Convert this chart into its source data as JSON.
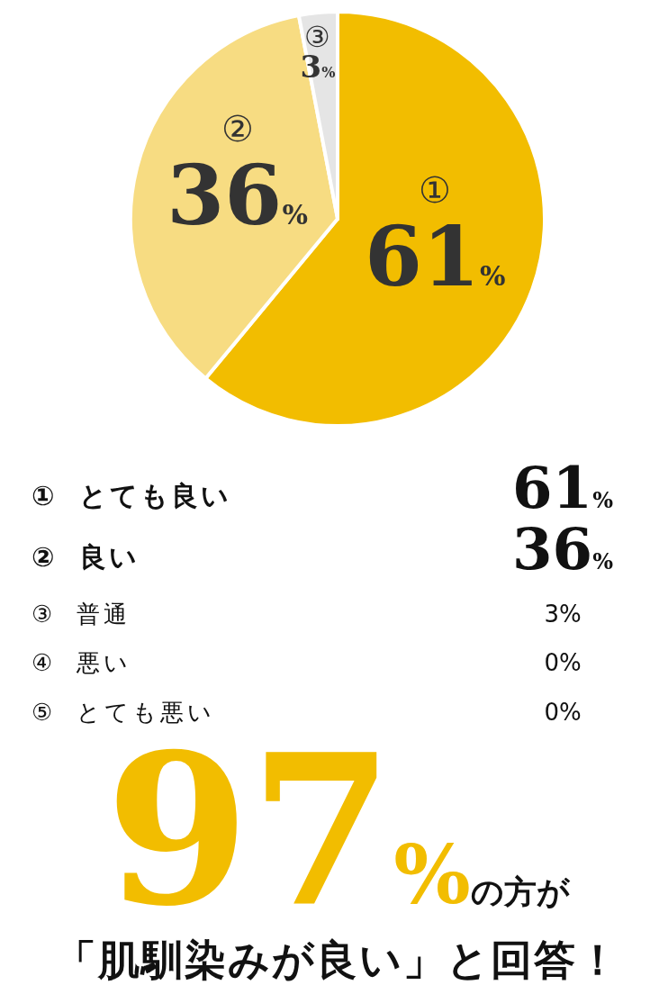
{
  "chart_data": [
    {
      "type": "pie",
      "categories": [
        "①",
        "②",
        "③",
        null,
        null
      ],
      "values": [
        61,
        36,
        3,
        0,
        0
      ],
      "colors": [
        "#f2bd00",
        "#f7dc82",
        "#e5e5e5",
        "#cccccc",
        "#bbbbbb"
      ],
      "value_labels": [
        "61%",
        "36%",
        "3%",
        null,
        null
      ]
    },
    {
      "type": "other",
      "categories": [
        "① とても良い",
        "② 良い",
        "③ 普通",
        "④ 悪い",
        "⑤ とても悪い"
      ],
      "values": [
        61,
        36,
        3,
        0,
        0
      ],
      "value_labels": [
        "61%",
        "36%",
        "3%",
        "0%",
        "0%"
      ],
      "annotations": [
        "97%の方が",
        "「肌馴染みが良い」と回答！"
      ]
    }
  ]
}
